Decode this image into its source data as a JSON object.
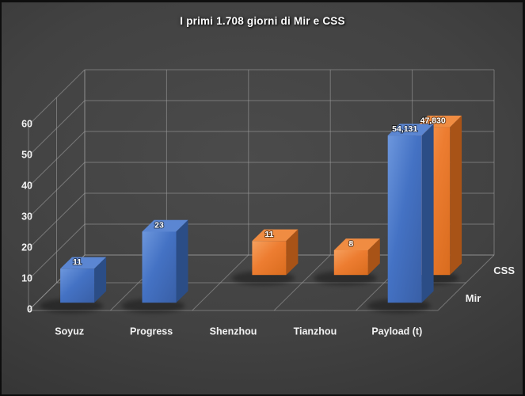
{
  "chart_data": {
    "type": "bar",
    "variant": "3d-column",
    "title": "I primi 1.708 giorni di Mir e CSS",
    "categories": [
      "Soyuz",
      "Progress",
      "Shenzhou",
      "Tianzhou",
      "Payload (t)"
    ],
    "series": [
      {
        "name": "Mir",
        "values": [
          11,
          23,
          null,
          null,
          54.131
        ],
        "data_labels": [
          "11",
          "23",
          null,
          null,
          "54,131"
        ],
        "shades": {
          "light": "#6d97dd",
          "base": "#4472c4",
          "dark": "#395fa6",
          "side": "#2b4d86",
          "top": "#5b86d2"
        }
      },
      {
        "name": "CSS",
        "values": [
          null,
          null,
          11,
          8,
          47.83
        ],
        "data_labels": [
          null,
          null,
          "11",
          "8",
          "47,830"
        ],
        "shades": {
          "light": "#f6a05e",
          "base": "#ed7d31",
          "dark": "#d96c1e",
          "side": "#a85317",
          "top": "#f08c42"
        }
      }
    ],
    "value_axis": {
      "min": 0,
      "max": 60,
      "step": 10,
      "ticks": [
        "0",
        "10",
        "20",
        "30",
        "40",
        "50",
        "60"
      ]
    },
    "depth_axis_labels": [
      "Mir",
      "CSS"
    ],
    "xlabel": "",
    "ylabel": "",
    "ylim": [
      0,
      60
    ],
    "grid": true,
    "legend_position": "depth-axis-right"
  },
  "styles": {
    "text_color": "#f2f2f2",
    "data_label_color": "#ffffff",
    "gridline_color": "#a3a3a3",
    "background_center": "#4b4b4b",
    "background_edge": "#202020",
    "shadow_color": "#000000"
  }
}
